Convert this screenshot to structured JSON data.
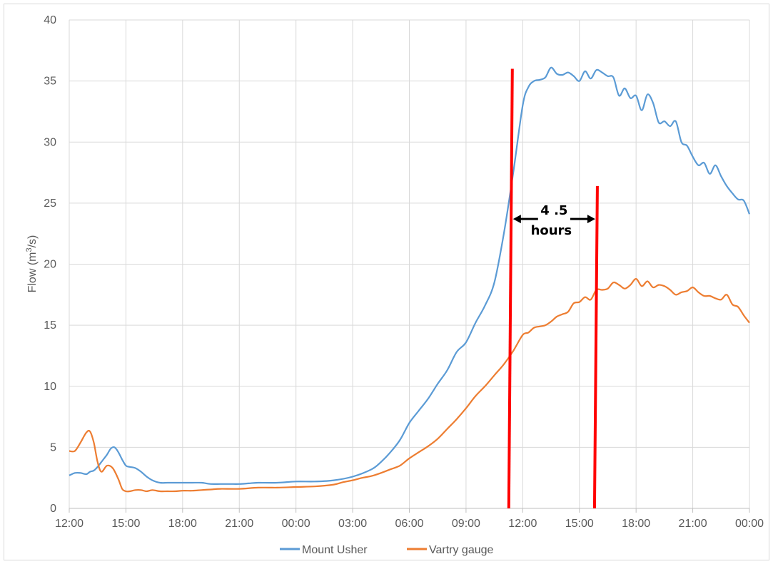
{
  "chart_data": {
    "type": "line",
    "title": "",
    "xlabel": "",
    "ylabel_main": "Flow (m",
    "ylabel_sup": "3",
    "ylabel_tail": "/s)",
    "ylim": [
      0,
      40
    ],
    "yticks": [
      0,
      5,
      10,
      15,
      20,
      25,
      30,
      35,
      40
    ],
    "xlim": [
      0,
      36
    ],
    "xtick_hours": [
      0,
      3,
      6,
      9,
      12,
      15,
      18,
      21,
      24,
      27,
      30,
      33,
      36
    ],
    "xtick_labels": [
      "12:00",
      "15:00",
      "18:00",
      "21:00",
      "00:00",
      "03:00",
      "06:00",
      "09:00",
      "12:00",
      "15:00",
      "18:00",
      "21:00",
      "00:00"
    ],
    "grid": true,
    "legend_position": "bottom",
    "series": [
      {
        "name": "Mount Usher",
        "color": "#5B9BD5",
        "x": [
          0,
          0.3,
          0.6,
          0.9,
          1.1,
          1.3,
          1.5,
          1.8,
          2.0,
          2.2,
          2.4,
          2.6,
          2.8,
          3.0,
          3.2,
          3.5,
          3.8,
          4.1,
          4.4,
          4.8,
          5.2,
          5.6,
          6.0,
          6.5,
          7.0,
          7.5,
          8.0,
          8.5,
          9.0,
          9.5,
          10.0,
          11.0,
          12.0,
          13.0,
          14.0,
          15.0,
          16.0,
          16.5,
          17.0,
          17.5,
          18.0,
          18.5,
          19.0,
          19.5,
          20.0,
          20.5,
          21.0,
          21.5,
          22.0,
          22.5,
          23.0,
          23.5,
          24.0,
          24.3,
          24.6,
          24.9,
          25.2,
          25.5,
          25.8,
          26.1,
          26.4,
          26.7,
          27.0,
          27.3,
          27.6,
          27.9,
          28.2,
          28.5,
          28.8,
          29.1,
          29.4,
          29.7,
          30.0,
          30.3,
          30.6,
          30.9,
          31.2,
          31.5,
          31.8,
          32.1,
          32.4,
          32.7,
          33.0,
          33.3,
          33.6,
          33.9,
          34.2,
          34.5,
          34.8,
          35.1,
          35.4,
          35.7,
          36.0
        ],
        "y": [
          2.7,
          2.9,
          2.9,
          2.8,
          3.0,
          3.1,
          3.4,
          4.0,
          4.4,
          4.9,
          5.0,
          4.6,
          4.0,
          3.5,
          3.4,
          3.3,
          3.0,
          2.6,
          2.3,
          2.1,
          2.1,
          2.1,
          2.1,
          2.1,
          2.1,
          2.0,
          2.0,
          2.0,
          2.0,
          2.05,
          2.1,
          2.1,
          2.2,
          2.2,
          2.3,
          2.6,
          3.2,
          3.8,
          4.6,
          5.6,
          7.0,
          8.0,
          9.0,
          10.2,
          11.3,
          12.8,
          13.6,
          15.2,
          16.6,
          18.5,
          22.5,
          27.5,
          33.0,
          34.5,
          35.0,
          35.1,
          35.3,
          36.1,
          35.6,
          35.5,
          35.7,
          35.4,
          35.0,
          35.8,
          35.2,
          35.9,
          35.7,
          35.4,
          35.3,
          33.8,
          34.4,
          33.6,
          33.8,
          32.6,
          33.9,
          33.2,
          31.6,
          31.7,
          31.3,
          31.7,
          30.0,
          29.7,
          28.8,
          28.1,
          28.3,
          27.4,
          28.1,
          27.2,
          26.4,
          25.8,
          25.3,
          25.2,
          24.1
        ]
      },
      {
        "name": "Vartry gauge",
        "color": "#ED7D31",
        "x": [
          0,
          0.3,
          0.6,
          0.9,
          1.1,
          1.3,
          1.5,
          1.7,
          2.0,
          2.3,
          2.6,
          2.8,
          3.0,
          3.2,
          3.5,
          3.8,
          4.1,
          4.4,
          4.8,
          5.2,
          5.6,
          6.0,
          6.5,
          7.0,
          7.5,
          8.0,
          9.0,
          10.0,
          11.0,
          12.0,
          13.0,
          14.0,
          14.5,
          15.0,
          15.5,
          16.0,
          16.5,
          17.0,
          17.5,
          18.0,
          18.5,
          19.0,
          19.5,
          20.0,
          20.5,
          21.0,
          21.5,
          22.0,
          22.5,
          23.0,
          23.5,
          24.0,
          24.3,
          24.6,
          24.9,
          25.2,
          25.5,
          25.8,
          26.1,
          26.4,
          26.7,
          27.0,
          27.3,
          27.6,
          27.9,
          28.2,
          28.5,
          28.8,
          29.1,
          29.4,
          29.7,
          30.0,
          30.3,
          30.6,
          30.9,
          31.2,
          31.5,
          31.8,
          32.1,
          32.4,
          32.7,
          33.0,
          33.3,
          33.6,
          33.9,
          34.2,
          34.5,
          34.8,
          35.1,
          35.4,
          35.7,
          36.0
        ],
        "y": [
          4.7,
          4.7,
          5.4,
          6.2,
          6.3,
          5.4,
          3.8,
          3.0,
          3.5,
          3.3,
          2.4,
          1.6,
          1.4,
          1.4,
          1.5,
          1.5,
          1.4,
          1.5,
          1.4,
          1.4,
          1.4,
          1.45,
          1.45,
          1.5,
          1.55,
          1.6,
          1.6,
          1.7,
          1.7,
          1.75,
          1.8,
          1.95,
          2.15,
          2.3,
          2.5,
          2.65,
          2.9,
          3.2,
          3.5,
          4.1,
          4.6,
          5.1,
          5.7,
          6.5,
          7.3,
          8.2,
          9.2,
          10.0,
          10.9,
          11.8,
          12.9,
          14.2,
          14.4,
          14.8,
          14.9,
          15.0,
          15.3,
          15.7,
          15.9,
          16.1,
          16.8,
          16.9,
          17.3,
          17.1,
          17.9,
          17.9,
          18.0,
          18.5,
          18.3,
          18.0,
          18.3,
          18.8,
          18.2,
          18.6,
          18.1,
          18.3,
          18.2,
          17.9,
          17.5,
          17.7,
          17.8,
          18.1,
          17.7,
          17.4,
          17.4,
          17.2,
          17.1,
          17.5,
          16.7,
          16.5,
          15.8,
          15.2
        ]
      }
    ],
    "annotations": {
      "line1_x": 23.3,
      "line1_ymax": 36,
      "line2_x": 27.8,
      "line2_ymax": 26.4,
      "line_color": "#FF0000",
      "label_top": "4 .5",
      "label_bottom": "hours",
      "arrow_y": 23.7
    }
  }
}
